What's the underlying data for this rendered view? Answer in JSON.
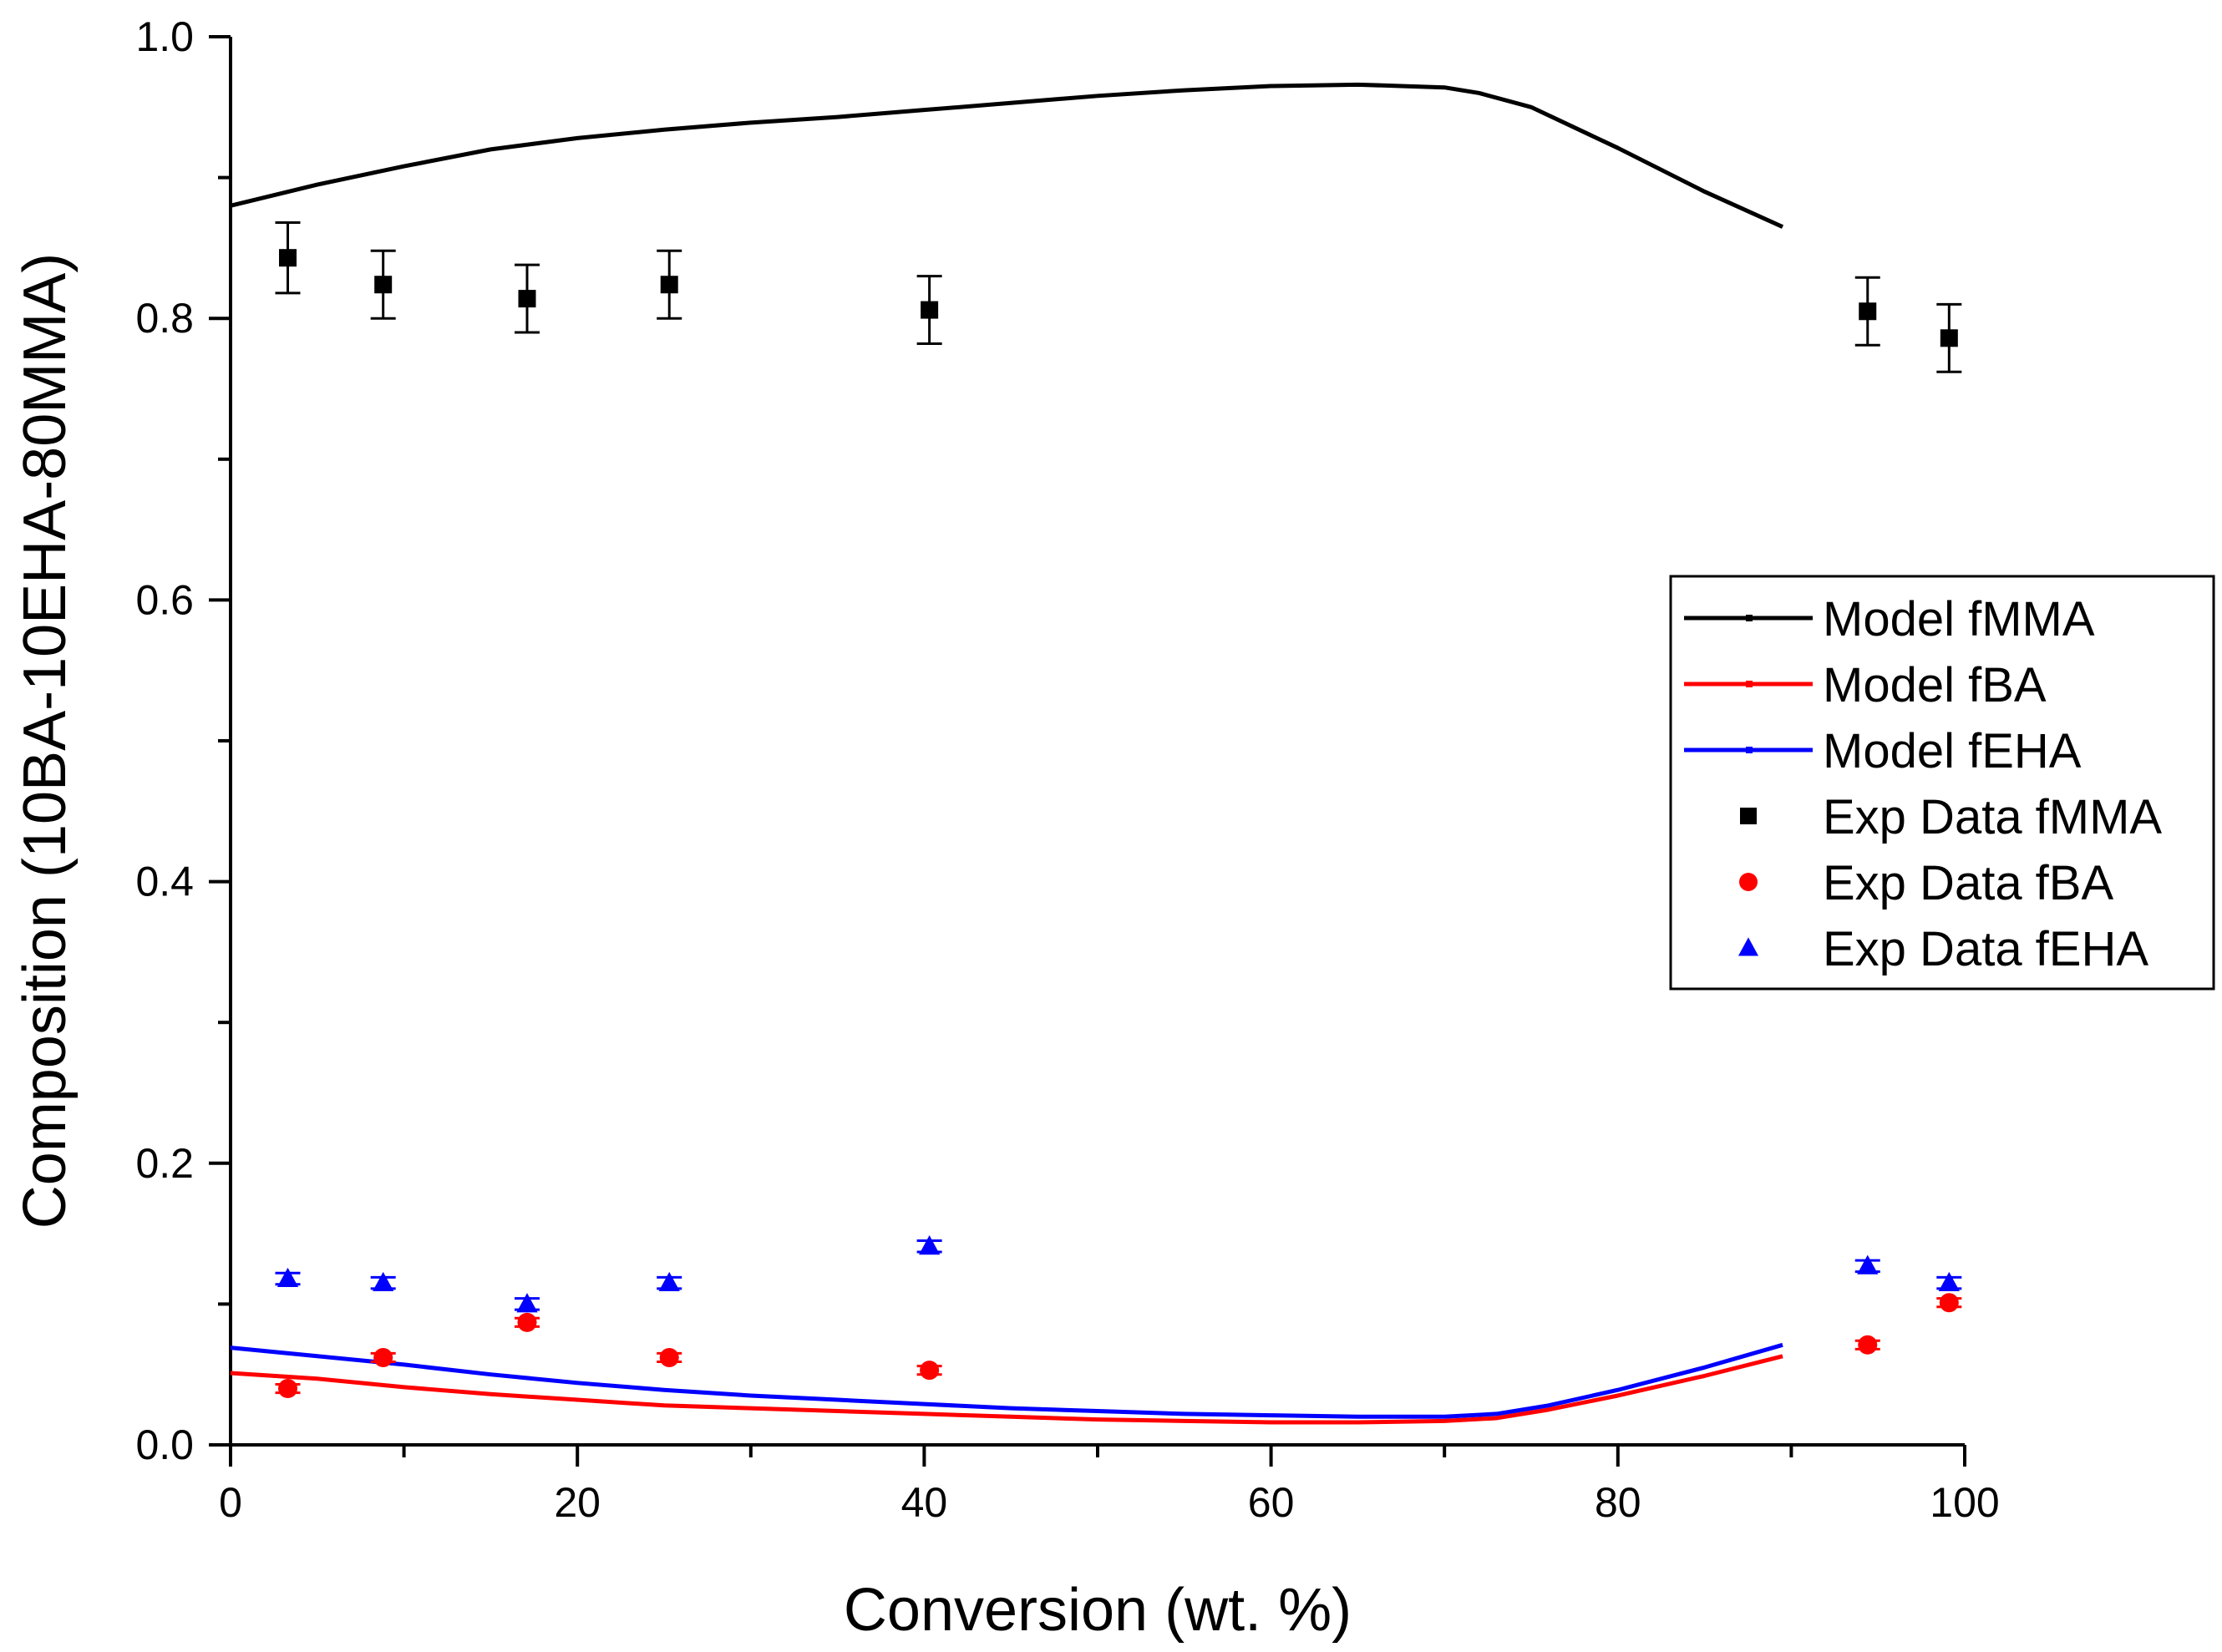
{
  "chart_data": {
    "type": "line",
    "title": "",
    "xlabel": "Conversion (wt. %)",
    "ylabel": "Composition (10BA-10EHA-80MMA)",
    "xlim": [
      0,
      100
    ],
    "ylim": [
      0,
      1.0
    ],
    "x_ticks": [
      0,
      20,
      40,
      60,
      80,
      100
    ],
    "x_tick_labels": [
      "0",
      "20",
      "40",
      "60",
      "80",
      "100"
    ],
    "y_ticks": [
      0,
      0.2,
      0.4,
      0.6,
      0.8,
      1.0
    ],
    "y_tick_labels": [
      "0.0",
      "0.2",
      "0.4",
      "0.6",
      "0.8",
      "1.0"
    ],
    "grid": false,
    "legend_position": "right",
    "series": [
      {
        "name": "Model fMMA",
        "kind": "line",
        "color": "#000000",
        "x": [
          0,
          5,
          10,
          15,
          20,
          25,
          30,
          35,
          40,
          45,
          50,
          55,
          60,
          65,
          70,
          72,
          75,
          80,
          85,
          89.5
        ],
        "y": [
          0.88,
          0.895,
          0.908,
          0.92,
          0.928,
          0.934,
          0.939,
          0.943,
          0.948,
          0.953,
          0.958,
          0.962,
          0.965,
          0.966,
          0.964,
          0.96,
          0.95,
          0.921,
          0.89,
          0.865
        ]
      },
      {
        "name": "Model fBA",
        "kind": "line",
        "color": "#ff0000",
        "x": [
          0,
          5,
          10,
          15,
          20,
          25,
          30,
          35,
          40,
          45,
          50,
          55,
          60,
          65,
          70,
          73,
          76,
          80,
          85,
          89.5
        ],
        "y": [
          0.051,
          0.047,
          0.041,
          0.036,
          0.032,
          0.028,
          0.026,
          0.024,
          0.022,
          0.02,
          0.018,
          0.017,
          0.016,
          0.016,
          0.017,
          0.019,
          0.025,
          0.035,
          0.049,
          0.063
        ]
      },
      {
        "name": "Model fEHA",
        "kind": "line",
        "color": "#0000ff",
        "x": [
          0,
          5,
          10,
          15,
          20,
          25,
          30,
          35,
          40,
          45,
          50,
          55,
          60,
          65,
          70,
          73,
          76,
          80,
          85,
          89.5
        ],
        "y": [
          0.069,
          0.063,
          0.057,
          0.05,
          0.044,
          0.039,
          0.035,
          0.032,
          0.029,
          0.026,
          0.024,
          0.022,
          0.021,
          0.02,
          0.02,
          0.022,
          0.028,
          0.039,
          0.055,
          0.071
        ]
      },
      {
        "name": "Exp Data fMMA",
        "kind": "scatter",
        "marker": "square",
        "color": "#000000",
        "x": [
          3.3,
          8.8,
          17.1,
          25.3,
          40.3,
          94.4,
          99.1
        ],
        "y": [
          0.843,
          0.824,
          0.814,
          0.824,
          0.806,
          0.805,
          0.786
        ],
        "err": [
          0.025,
          0.024,
          0.024,
          0.024,
          0.024,
          0.024,
          0.024
        ]
      },
      {
        "name": "Exp Data fBA",
        "kind": "scatter",
        "marker": "circle",
        "color": "#ff0000",
        "x": [
          3.3,
          8.8,
          17.1,
          25.3,
          40.3,
          94.4,
          99.1
        ],
        "y": [
          0.04,
          0.062,
          0.087,
          0.062,
          0.053,
          0.071,
          0.101
        ],
        "err": [
          0.003,
          0.003,
          0.003,
          0.003,
          0.003,
          0.003,
          0.003
        ]
      },
      {
        "name": "Exp Data fEHA",
        "kind": "scatter",
        "marker": "triangle",
        "color": "#0000ff",
        "x": [
          3.3,
          8.8,
          17.1,
          25.3,
          40.3,
          94.4,
          99.1
        ],
        "y": [
          0.118,
          0.115,
          0.1,
          0.115,
          0.141,
          0.127,
          0.115
        ],
        "err": [
          0.004,
          0.004,
          0.004,
          0.004,
          0.004,
          0.004,
          0.004
        ]
      }
    ]
  }
}
